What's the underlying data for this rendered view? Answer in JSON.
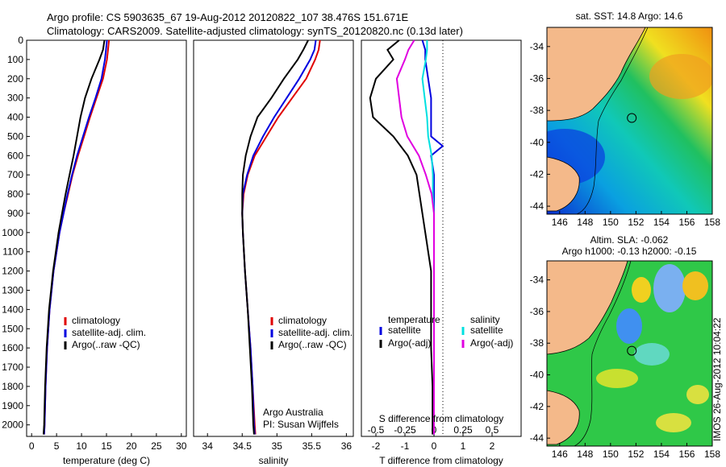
{
  "header": {
    "line1": "Argo profile: CS 5903635_67 19-Aug-2012 20120822_107 38.476S 151.671E",
    "line2": "Climatology: CARS2009. Satellite-adjusted climatology: synTS_20120820.nc (0.13d later)"
  },
  "colors": {
    "climatology": "#e00000",
    "satellite": "#0000e0",
    "argo": "#000000",
    "sat_diff_s": "#00e0e0",
    "argo_diff_s": "#e000e0",
    "land": "#f4b98a"
  },
  "chart_data": [
    {
      "type": "line",
      "panel": "temperature",
      "xlabel": "temperature (deg C)",
      "xlim": [
        -1,
        31
      ],
      "xticks": [
        "0",
        "5",
        "10",
        "15",
        "20",
        "25",
        "30"
      ],
      "ylim": [
        2060,
        0
      ],
      "yticks": [
        "0",
        "100",
        "200",
        "300",
        "400",
        "500",
        "600",
        "700",
        "800",
        "900",
        "1000",
        "1100",
        "1200",
        "1300",
        "1400",
        "1500",
        "1600",
        "1700",
        "1800",
        "1900",
        "2000"
      ],
      "legend": [
        "climatology",
        "satellite-adj. clim.",
        "Argo(..raw -QC)"
      ],
      "series": [
        {
          "name": "climatology",
          "color": "#e00000",
          "depth": [
            0,
            50,
            100,
            200,
            300,
            400,
            500,
            600,
            700,
            800,
            900,
            1000,
            1200,
            1400,
            1600,
            1800,
            2000,
            2050
          ],
          "values": [
            15.5,
            15.3,
            15.1,
            14.3,
            13.0,
            11.7,
            10.5,
            9.3,
            8.2,
            7.3,
            6.4,
            5.6,
            4.4,
            3.6,
            3.1,
            2.8,
            2.6,
            2.5
          ]
        },
        {
          "name": "satellite-adj. clim.",
          "color": "#0000e0",
          "depth": [
            0,
            50,
            100,
            200,
            300,
            400,
            500,
            600,
            700,
            800,
            900,
            1000,
            1200,
            1400,
            1600,
            1800,
            2000,
            2050
          ],
          "values": [
            15.1,
            14.9,
            14.7,
            14.0,
            12.8,
            11.5,
            10.3,
            9.1,
            8.1,
            7.2,
            6.4,
            5.6,
            4.4,
            3.6,
            3.1,
            2.8,
            2.6,
            2.5
          ]
        },
        {
          "name": "Argo(..raw -QC)",
          "color": "#000000",
          "depth": [
            0,
            50,
            100,
            200,
            300,
            400,
            500,
            600,
            700,
            800,
            900,
            1000,
            1200,
            1400,
            1600,
            1800,
            2000,
            2050
          ],
          "values": [
            14.6,
            14.3,
            13.6,
            12.0,
            10.7,
            9.8,
            9.1,
            8.4,
            7.6,
            6.8,
            6.1,
            5.4,
            4.3,
            3.5,
            3.0,
            2.7,
            2.5,
            2.4
          ]
        }
      ]
    },
    {
      "type": "line",
      "panel": "salinity",
      "xlabel": "salinity",
      "xlim": [
        33.8,
        36.1
      ],
      "xticks": [
        "34",
        "34.5",
        "35",
        "35.5",
        "36"
      ],
      "ylim": [
        2060,
        0
      ],
      "legend": [
        "climatology",
        "satellite-adj. clim.",
        "Argo(..raw -QC)"
      ],
      "annotation": [
        "Argo Australia",
        "PI: Susan Wijffels"
      ],
      "series": [
        {
          "name": "climatology",
          "color": "#e00000",
          "depth": [
            0,
            50,
            100,
            200,
            300,
            400,
            500,
            600,
            700,
            800,
            900,
            1000,
            1200,
            1400,
            1600,
            1800,
            2000,
            2050
          ],
          "values": [
            35.62,
            35.6,
            35.55,
            35.42,
            35.22,
            35.02,
            34.85,
            34.68,
            34.58,
            34.52,
            34.5,
            34.51,
            34.54,
            34.58,
            34.62,
            34.65,
            34.68,
            34.69
          ]
        },
        {
          "name": "satellite-adj. clim.",
          "color": "#0000e0",
          "depth": [
            0,
            50,
            100,
            200,
            300,
            400,
            500,
            600,
            700,
            800,
            900,
            1000,
            1200,
            1400,
            1600,
            1800,
            2000,
            2050
          ],
          "values": [
            35.56,
            35.54,
            35.48,
            35.32,
            35.14,
            34.96,
            34.8,
            34.66,
            34.57,
            34.51,
            34.5,
            34.51,
            34.54,
            34.58,
            34.62,
            34.65,
            34.67,
            34.68
          ]
        },
        {
          "name": "Argo(..raw -QC)",
          "color": "#000000",
          "depth": [
            0,
            50,
            100,
            200,
            300,
            400,
            500,
            600,
            700,
            800,
            900,
            1000,
            1200,
            1400,
            1600,
            1800,
            2000,
            2050
          ],
          "values": [
            35.45,
            35.38,
            35.3,
            35.1,
            34.92,
            34.72,
            34.62,
            34.55,
            34.51,
            34.5,
            34.5,
            34.51,
            34.54,
            34.58,
            34.61,
            34.64,
            34.66,
            34.67
          ]
        }
      ]
    },
    {
      "type": "line",
      "panel": "difference",
      "xlabel": "T difference from climatology",
      "xlabel_top": "S difference from climatology",
      "xlim": [
        -2.5,
        3.0
      ],
      "xticks_bottom": [
        "-2",
        "-1",
        "0",
        "1",
        "2"
      ],
      "xticks_top": [
        "-0.5",
        "-0.25",
        "0",
        "0.25",
        "0.5"
      ],
      "ylim": [
        2060,
        0
      ],
      "legend_headers": [
        "temperature",
        "salinity"
      ],
      "legend": [
        "satellite",
        "Argo(-adj)",
        "satellite",
        "Argo(-adj)"
      ],
      "series": [
        {
          "name": "temperature satellite",
          "color": "#0000e0",
          "depth": [
            0,
            50,
            100,
            200,
            300,
            400,
            500,
            550,
            600,
            700,
            800,
            900,
            1000,
            1200,
            1400,
            1600,
            1800,
            2000,
            2050
          ],
          "values": [
            -0.4,
            -0.3,
            -0.3,
            -0.2,
            -0.1,
            -0.1,
            -0.1,
            0.3,
            -0.1,
            0.0,
            0.0,
            0.0,
            0.0,
            0.0,
            0.0,
            0.0,
            0.0,
            0.0,
            0.0
          ]
        },
        {
          "name": "temperature Argo(-adj)",
          "color": "#000000",
          "depth": [
            0,
            50,
            100,
            200,
            300,
            400,
            500,
            600,
            700,
            800,
            900,
            1000,
            1200,
            1400,
            1600,
            1800,
            2000,
            2050
          ],
          "values": [
            -1.2,
            -1.6,
            -1.4,
            -2.0,
            -2.2,
            -2.1,
            -1.4,
            -0.9,
            -0.6,
            -0.5,
            -0.4,
            -0.3,
            -0.1,
            -0.1,
            -0.1,
            -0.05,
            -0.05,
            -0.05
          ]
        },
        {
          "name": "salinity satellite",
          "color": "#00e0e0",
          "depth": [
            0,
            50,
            100,
            200,
            300,
            400,
            500,
            600,
            700,
            800,
            900,
            1000,
            1200,
            1400,
            1600,
            1800,
            2000,
            2050
          ],
          "values": [
            -0.06,
            -0.06,
            -0.07,
            -0.1,
            -0.08,
            -0.06,
            -0.05,
            -0.02,
            -0.01,
            -0.01,
            0.0,
            0.0,
            0.0,
            0.0,
            0.0,
            0.0,
            0.0,
            0.0
          ]
        },
        {
          "name": "salinity Argo(-adj)",
          "color": "#e000e0",
          "depth": [
            0,
            50,
            100,
            200,
            300,
            400,
            500,
            600,
            700,
            800,
            900,
            1000,
            1200,
            1400,
            1600,
            1800,
            2000,
            2050
          ],
          "values": [
            -0.17,
            -0.22,
            -0.25,
            -0.32,
            -0.3,
            -0.28,
            -0.23,
            -0.13,
            -0.07,
            -0.02,
            0.0,
            0.0,
            0.0,
            0.0,
            0.0,
            0.0,
            0.0,
            0.0
          ]
        }
      ]
    },
    {
      "type": "heatmap",
      "panel": "sst-map",
      "title": "sat. SST: 14.8 Argo: 14.6",
      "xticks": [
        "146",
        "148",
        "150",
        "152",
        "154",
        "156",
        "158"
      ],
      "yticks": [
        "-34",
        "-36",
        "-38",
        "-40",
        "-42",
        "-44"
      ],
      "xlim": [
        145,
        158
      ],
      "ylim": [
        -44.5,
        -32.8
      ],
      "marker": {
        "lon": 151.671,
        "lat": -38.476
      }
    },
    {
      "type": "heatmap",
      "panel": "sla-map",
      "title_lines": [
        "Altim. SLA: -0.062",
        "Argo h1000: -0.13 h2000: -0.15"
      ],
      "xticks": [
        "146",
        "148",
        "150",
        "152",
        "154",
        "156",
        "158"
      ],
      "yticks": [
        "-34",
        "-36",
        "-38",
        "-40",
        "-42",
        "-44"
      ],
      "xlim": [
        145,
        158
      ],
      "ylim": [
        -44.5,
        -32.8
      ],
      "marker": {
        "lon": 151.671,
        "lat": -38.476
      }
    }
  ],
  "stamp": "IMOS 26-Aug-2012 10:04:22"
}
